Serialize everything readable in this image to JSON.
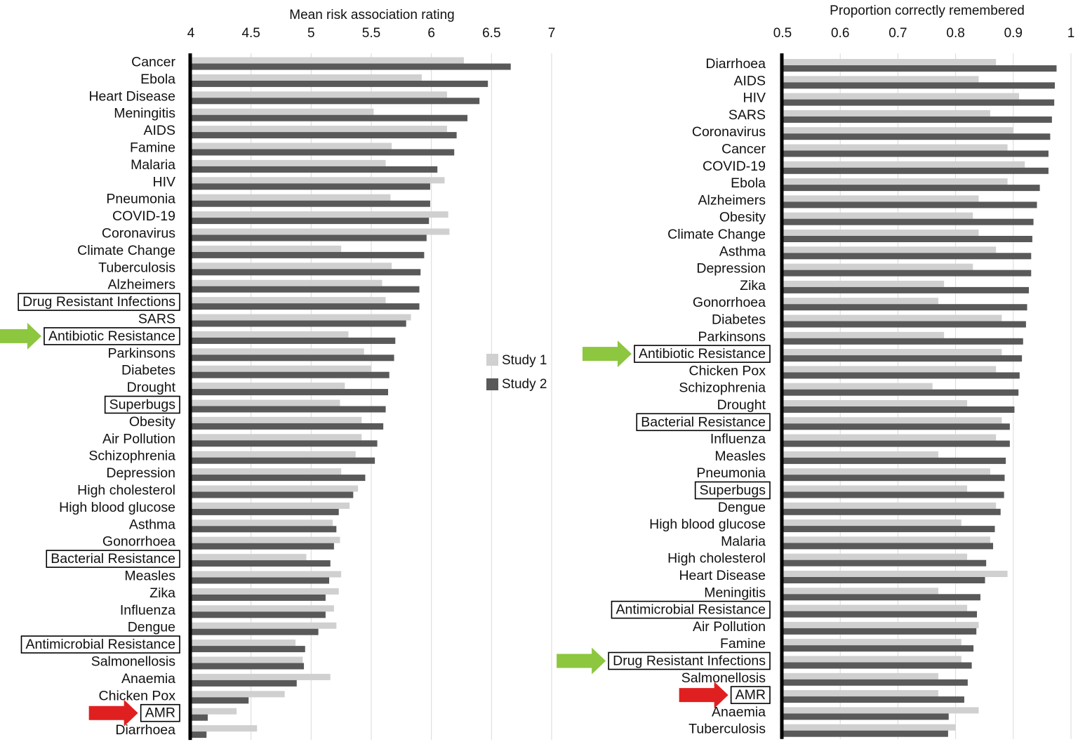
{
  "legend": [
    {
      "name": "Study 1",
      "color": "#d0d0d0"
    },
    {
      "name": "Study 2",
      "color": "#595959"
    }
  ],
  "highlight_colors": {
    "green_arrow": "#8dc63f",
    "red_arrow": "#e02020",
    "box": "#000000"
  },
  "chart_data": [
    {
      "type": "bar",
      "orientation": "horizontal",
      "xlabel": "Mean risk association rating",
      "xlim": [
        4,
        7
      ],
      "xticks": [
        "4",
        "4.5",
        "5",
        "5.5",
        "6",
        "6.5",
        "7"
      ],
      "grid": true,
      "categories": [
        "Cancer",
        "Ebola",
        "Heart Disease",
        "Meningitis",
        "AIDS",
        "Famine",
        "Malaria",
        "HIV",
        "Pneumonia",
        "COVID-19",
        "Coronavirus",
        "Climate Change",
        "Tuberculosis",
        "Alzheimers",
        "Drug Resistant Infections",
        "SARS",
        "Antibiotic Resistance",
        "Parkinsons",
        "Diabetes",
        "Drought",
        "Superbugs",
        "Obesity",
        "Air Pollution",
        "Schizophrenia",
        "Depression",
        "High cholesterol",
        "High blood glucose",
        "Asthma",
        "Gonorrhoea",
        "Bacterial Resistance",
        "Measles",
        "Zika",
        "Influenza",
        "Dengue",
        "Antimicrobial Resistance",
        "Salmonellosis",
        "Anaemia",
        "Chicken Pox",
        "AMR",
        "Diarrhoea"
      ],
      "boxed": [
        "Drug Resistant Infections",
        "Antibiotic Resistance",
        "Superbugs",
        "Bacterial Resistance",
        "Antimicrobial Resistance",
        "AMR"
      ],
      "green_arrow": "Antibiotic Resistance",
      "red_arrow": "AMR",
      "series": [
        {
          "name": "Study 1",
          "values": [
            6.27,
            5.92,
            6.13,
            5.52,
            6.13,
            5.67,
            5.62,
            6.11,
            5.66,
            6.14,
            6.15,
            5.25,
            5.67,
            5.59,
            5.62,
            5.83,
            5.31,
            5.44,
            5.5,
            5.28,
            5.24,
            5.42,
            5.42,
            5.37,
            5.25,
            5.39,
            5.32,
            5.18,
            5.24,
            4.96,
            5.25,
            5.23,
            5.19,
            5.21,
            4.87,
            4.93,
            5.16,
            4.78,
            4.38,
            4.55
          ]
        },
        {
          "name": "Study 2",
          "values": [
            6.66,
            6.47,
            6.4,
            6.3,
            6.21,
            6.19,
            6.05,
            5.99,
            5.99,
            5.98,
            5.96,
            5.94,
            5.91,
            5.9,
            5.9,
            5.79,
            5.7,
            5.69,
            5.65,
            5.64,
            5.62,
            5.6,
            5.55,
            5.53,
            5.45,
            5.35,
            5.23,
            5.21,
            5.19,
            5.16,
            5.15,
            5.12,
            5.12,
            5.06,
            4.95,
            4.94,
            4.88,
            4.48,
            4.14,
            4.13
          ]
        }
      ]
    },
    {
      "type": "bar",
      "orientation": "horizontal",
      "xlabel": "Proportion correctly remembered",
      "xlim": [
        0.5,
        1
      ],
      "xticks": [
        "0.5",
        "0.6",
        "0.7",
        "0.8",
        "0.9",
        "1"
      ],
      "grid": true,
      "categories": [
        "Diarrhoea",
        "AIDS",
        "HIV",
        "SARS",
        "Coronavirus",
        "Cancer",
        "COVID-19",
        "Ebola",
        "Alzheimers",
        "Obesity",
        "Climate Change",
        "Asthma",
        "Depression",
        "Zika",
        "Gonorrhoea",
        "Diabetes",
        "Parkinsons",
        "Antibiotic Resistance",
        "Chicken Pox",
        "Schizophrenia",
        "Drought",
        "Bacterial Resistance",
        "Influenza",
        "Measles",
        "Pneumonia",
        "Superbugs",
        "Dengue",
        "High blood glucose",
        "Malaria",
        "High cholesterol",
        "Heart Disease",
        "Meningitis",
        "Antimicrobial Resistance",
        "Air Pollution",
        "Famine",
        "Drug Resistant Infections",
        "Salmonellosis",
        "AMR",
        "Anaemia",
        "Tuberculosis"
      ],
      "boxed": [
        "Antibiotic Resistance",
        "Bacterial Resistance",
        "Superbugs",
        "Antimicrobial Resistance",
        "Drug Resistant Infections",
        "AMR"
      ],
      "green_arrow": [
        "Antibiotic Resistance",
        "Drug Resistant Infections"
      ],
      "red_arrow": "AMR",
      "series": [
        {
          "name": "Study 1",
          "values": [
            0.87,
            0.84,
            0.91,
            0.86,
            0.9,
            0.89,
            0.92,
            0.89,
            0.84,
            0.83,
            0.84,
            0.87,
            0.83,
            0.78,
            0.77,
            0.88,
            0.78,
            0.88,
            0.87,
            0.76,
            0.82,
            0.88,
            0.87,
            0.77,
            0.86,
            0.82,
            0.87,
            0.81,
            0.86,
            0.82,
            0.89,
            0.77,
            0.82,
            0.84,
            0.81,
            0.81,
            0.77,
            0.77,
            0.84,
            0.8
          ]
        },
        {
          "name": "Study 2",
          "values": [
            0.975,
            0.972,
            0.971,
            0.967,
            0.964,
            0.961,
            0.961,
            0.946,
            0.941,
            0.935,
            0.933,
            0.931,
            0.931,
            0.927,
            0.924,
            0.922,
            0.917,
            0.915,
            0.911,
            0.909,
            0.902,
            0.894,
            0.894,
            0.887,
            0.885,
            0.884,
            0.878,
            0.868,
            0.865,
            0.853,
            0.851,
            0.843,
            0.837,
            0.836,
            0.831,
            0.828,
            0.821,
            0.815,
            0.788,
            0.787
          ]
        }
      ]
    }
  ]
}
